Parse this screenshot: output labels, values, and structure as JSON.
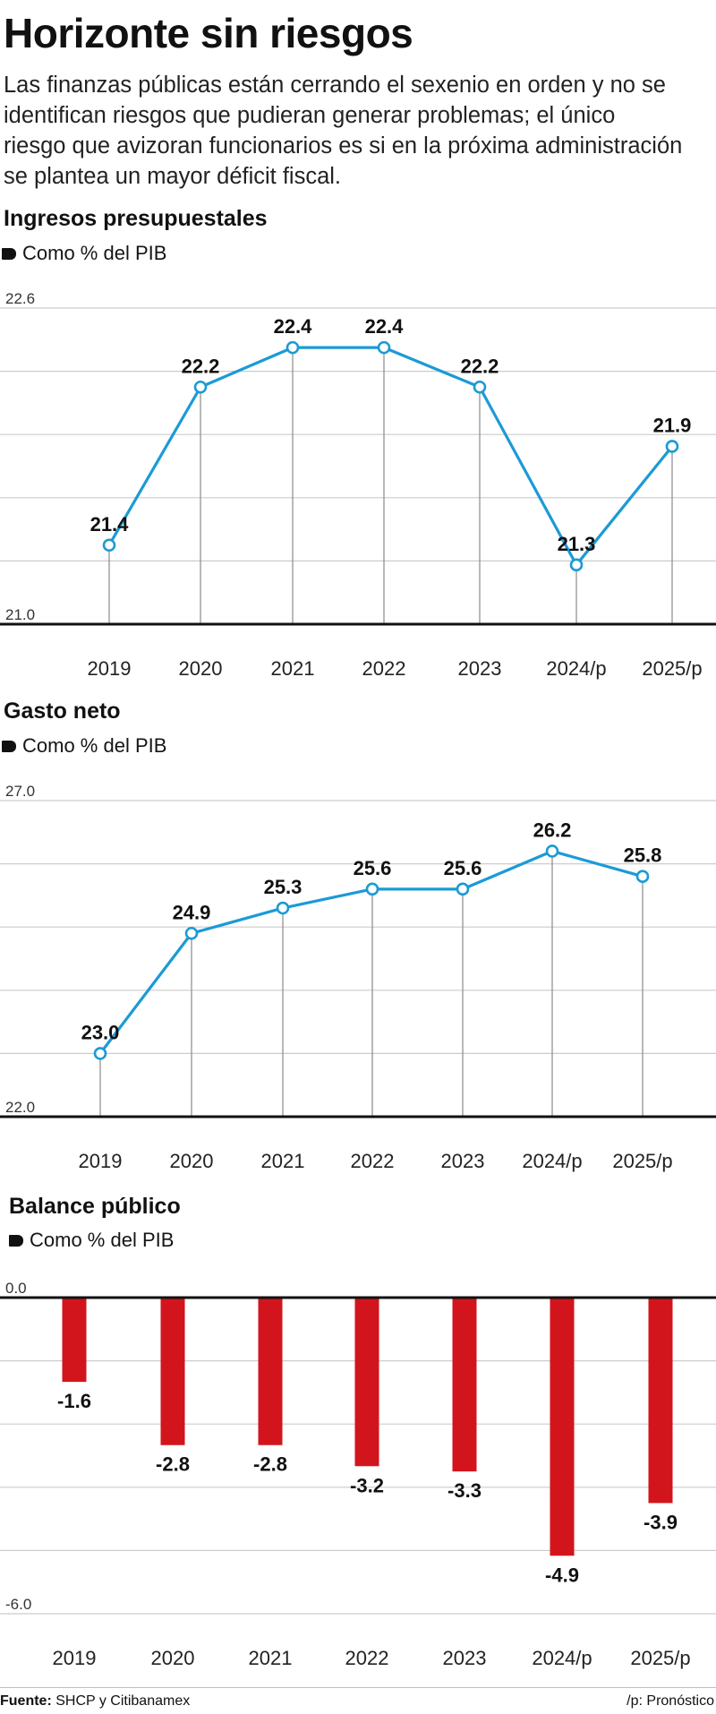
{
  "title": "Horizonte sin riesgos",
  "intro": {
    "lines": [
      "Las finanzas públicas están cerrando el sexenio en orden y no se",
      "identifican riesgos que pudieran generar problemas; el único",
      "riesgo que avizoran funcionarios es si en la próxima administración",
      "se plantea un mayor déficit fiscal."
    ]
  },
  "colors": {
    "line": "#1b9ad6",
    "bar": "#d2151c",
    "grid": "#cccccc",
    "axis": "#111111"
  },
  "chart_data": [
    {
      "type": "line",
      "title": "Ingresos presupuestales",
      "subtitle": "Como % del PIB",
      "categories": [
        "2019",
        "2020",
        "2021",
        "2022",
        "2023",
        "2024/p",
        "2025/p"
      ],
      "values": [
        21.4,
        22.2,
        22.4,
        22.4,
        22.2,
        21.3,
        21.9
      ],
      "data_labels": [
        "21.4",
        "22.2",
        "22.4",
        "22.4",
        "22.2",
        "21.3",
        "21.9"
      ],
      "ylim": [
        21.0,
        22.6
      ],
      "ytick_labels": [
        "22.6",
        "21.0"
      ],
      "grid": true
    },
    {
      "type": "line",
      "title": "Gasto neto",
      "subtitle": "Como % del PIB",
      "categories": [
        "2019",
        "2020",
        "2021",
        "2022",
        "2023",
        "2024/p",
        "2025/p"
      ],
      "values": [
        23.0,
        24.9,
        25.3,
        25.6,
        25.6,
        26.2,
        25.8
      ],
      "data_labels": [
        "23.0",
        "24.9",
        "25.3",
        "25.6",
        "25.6",
        "26.2",
        "25.8"
      ],
      "ylim": [
        22.0,
        27.0
      ],
      "ytick_labels": [
        "27.0",
        "22.0"
      ],
      "grid": true
    },
    {
      "type": "bar",
      "title": "Balance público",
      "subtitle": "Como % del PIB",
      "categories": [
        "2019",
        "2020",
        "2021",
        "2022",
        "2023",
        "2024/p",
        "2025/p"
      ],
      "values": [
        -1.6,
        -2.8,
        -2.8,
        -3.2,
        -3.3,
        -4.9,
        -3.9
      ],
      "data_labels": [
        "-1.6",
        "-2.8",
        "-2.8",
        "-3.2",
        "-3.3",
        "-4.9",
        "-3.9"
      ],
      "ylim": [
        -6.0,
        0.0
      ],
      "ytick_labels": [
        "0.0",
        "-6.0"
      ],
      "grid": true
    }
  ],
  "footer": {
    "source_label": "Fuente:",
    "source_text": "SHCP y Citibanamex",
    "note": "/p: Pronóstico"
  }
}
